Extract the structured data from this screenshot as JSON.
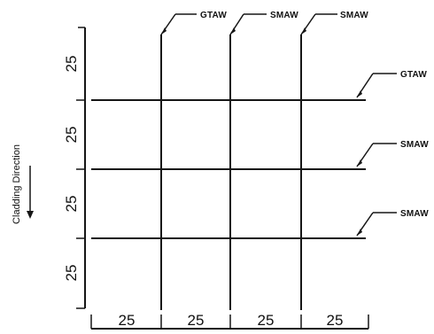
{
  "diagram": {
    "top_labels": [
      "GTAW",
      "SMAW",
      "SMAW"
    ],
    "right_labels": [
      "GTAW",
      "SMAW",
      "SMAW"
    ],
    "left_dimensions": [
      "25",
      "25",
      "25",
      "25"
    ],
    "bottom_dimensions": [
      "25",
      "25",
      "25",
      "25"
    ],
    "direction_label": "Cladding Direction"
  }
}
